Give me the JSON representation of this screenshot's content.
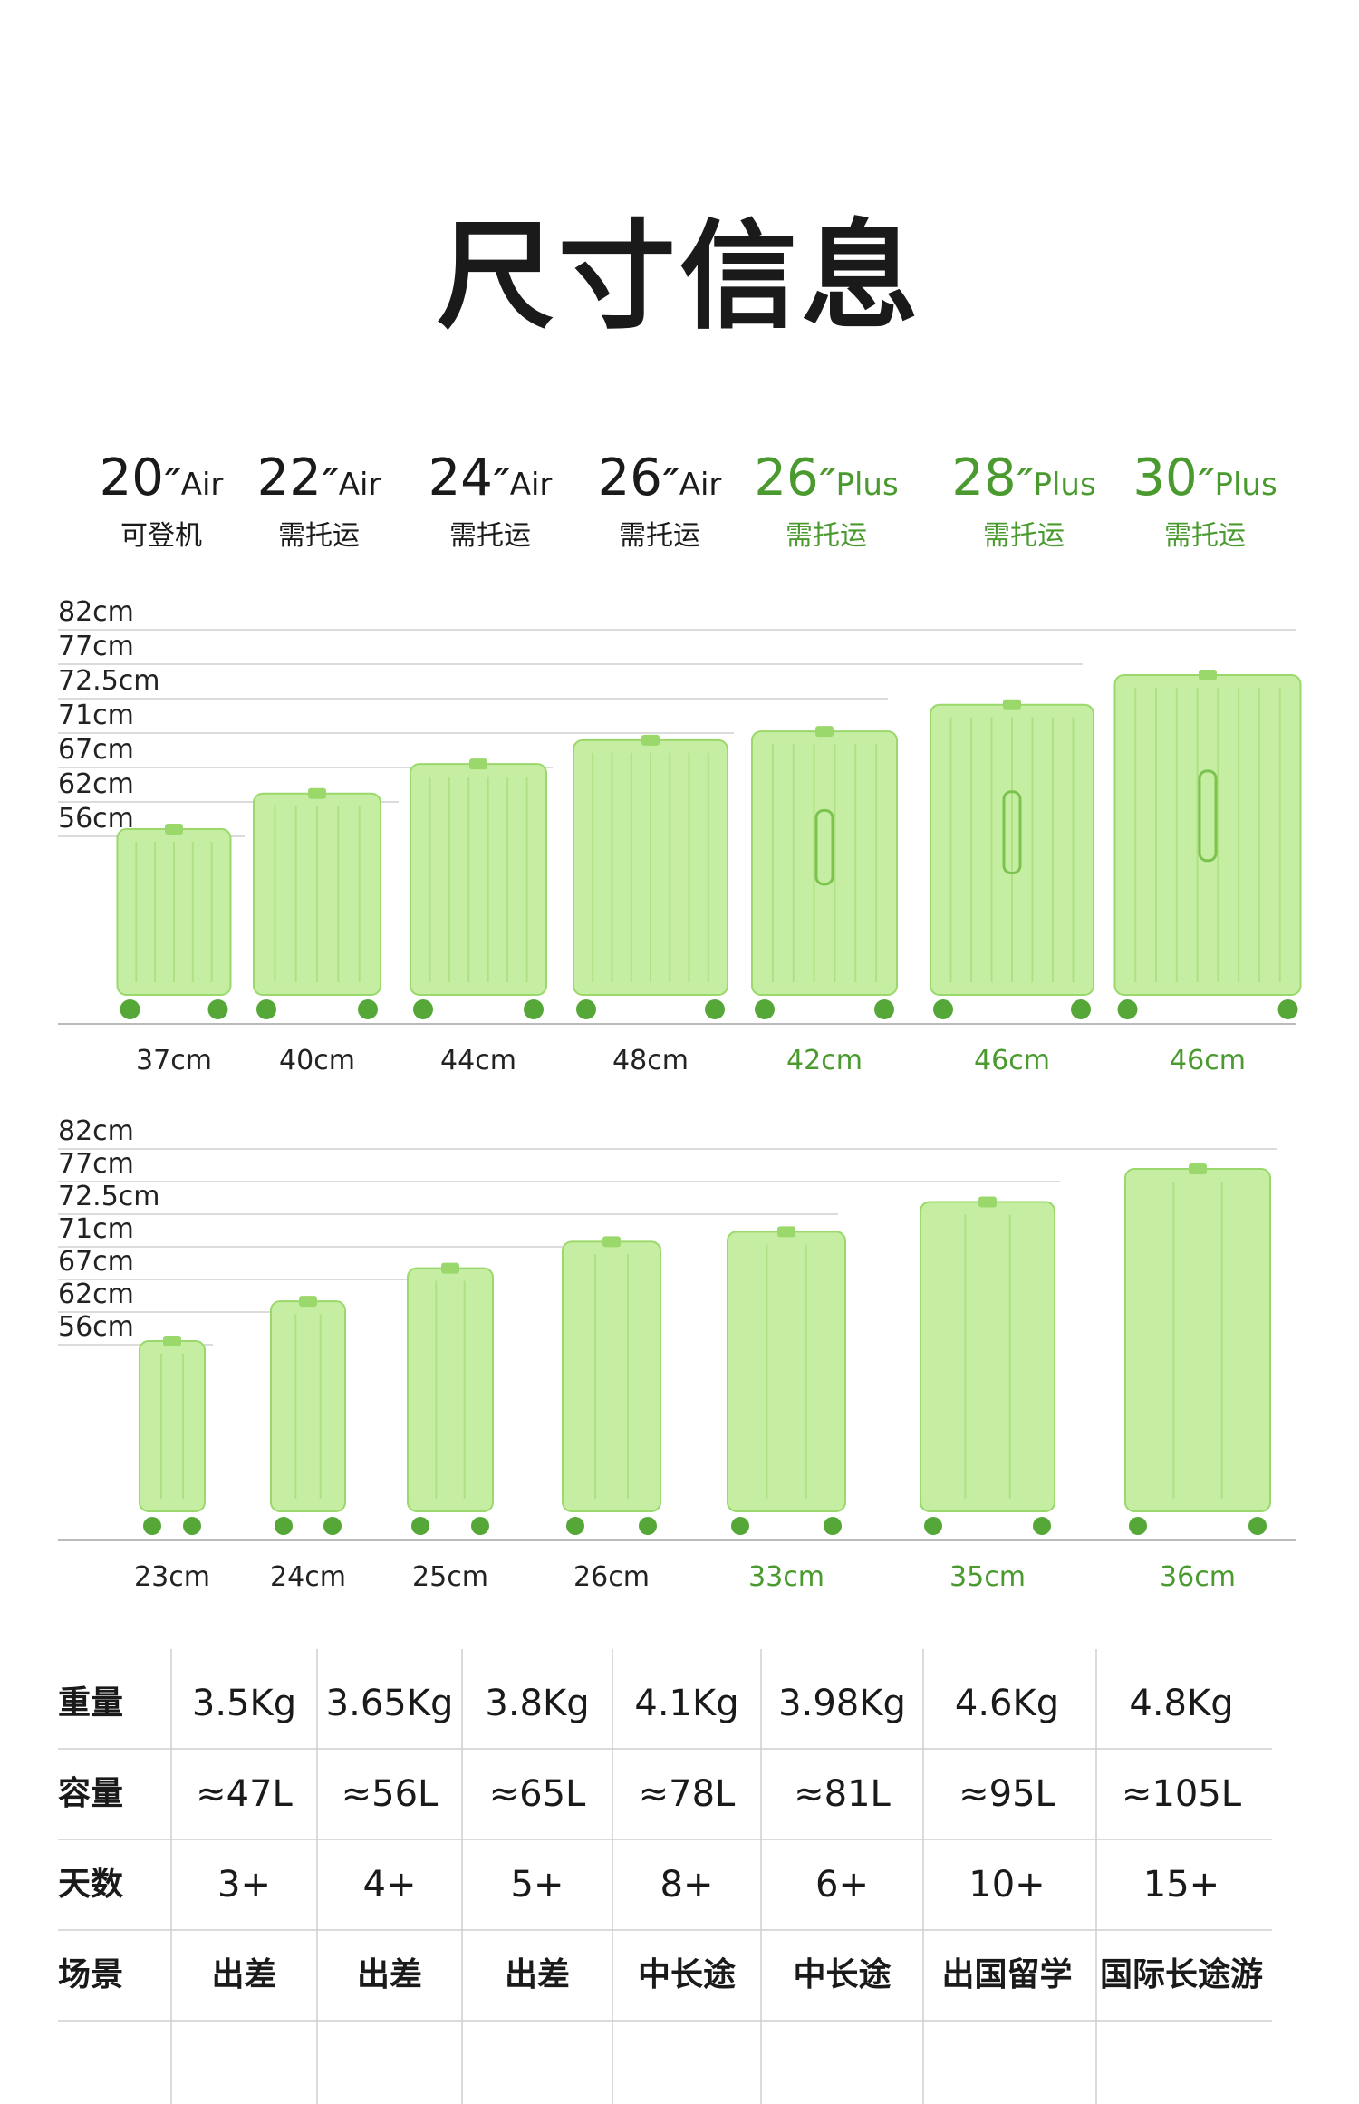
{
  "title": "尺寸信息",
  "colors": {
    "accent": "#4a9a2f",
    "case_body": "#c6eea2",
    "case_dark": "#9ad86b",
    "wheel": "#55a838",
    "text": "#1a1a1a",
    "grid": "#cfcfcf"
  },
  "models": [
    {
      "num": "20",
      "mark": "″",
      "variant": "Air",
      "sub": "可登机",
      "width": "37cm",
      "depth": "23cm",
      "height_cm": 56,
      "plus": false
    },
    {
      "num": "22",
      "mark": "″",
      "variant": "Air",
      "sub": "需托运",
      "width": "40cm",
      "depth": "24cm",
      "height_cm": 62,
      "plus": false
    },
    {
      "num": "24",
      "mark": "″",
      "variant": "Air",
      "sub": "需托运",
      "width": "44cm",
      "depth": "25cm",
      "height_cm": 67,
      "plus": false
    },
    {
      "num": "26",
      "mark": "″",
      "variant": "Air",
      "sub": "需托运",
      "width": "48cm",
      "depth": "26cm",
      "height_cm": 71,
      "plus": false
    },
    {
      "num": "26",
      "mark": "″",
      "variant": "Plus",
      "sub": "需托运",
      "width": "42cm",
      "depth": "33cm",
      "height_cm": 72.5,
      "plus": true
    },
    {
      "num": "28",
      "mark": "″",
      "variant": "Plus",
      "sub": "需托运",
      "width": "46cm",
      "depth": "35cm",
      "height_cm": 77,
      "plus": true
    },
    {
      "num": "30",
      "mark": "″",
      "variant": "Plus",
      "sub": "需托运",
      "width": "46cm",
      "depth": "36cm",
      "height_cm": 82,
      "plus": true
    }
  ],
  "height_labels": [
    "82cm",
    "77cm",
    "72.5cm",
    "71cm",
    "67cm",
    "62cm",
    "56cm"
  ],
  "specs": {
    "rows": [
      {
        "label": "重量",
        "values": [
          "3.5Kg",
          "3.65Kg",
          "3.8Kg",
          "4.1Kg",
          "3.98Kg",
          "4.6Kg",
          "4.8Kg"
        ]
      },
      {
        "label": "容量",
        "values": [
          "≈47L",
          "≈56L",
          "≈65L",
          "≈78L",
          "≈81L",
          "≈95L",
          "≈105L"
        ]
      },
      {
        "label": "天数",
        "values": [
          "3+",
          "4+",
          "5+",
          "8+",
          "6+",
          "10+",
          "15+"
        ]
      },
      {
        "label": "场景",
        "values": [
          "出差",
          "出差",
          "出差",
          "中长途",
          "中长途",
          "出国留学",
          "国际长途游"
        ]
      }
    ]
  }
}
